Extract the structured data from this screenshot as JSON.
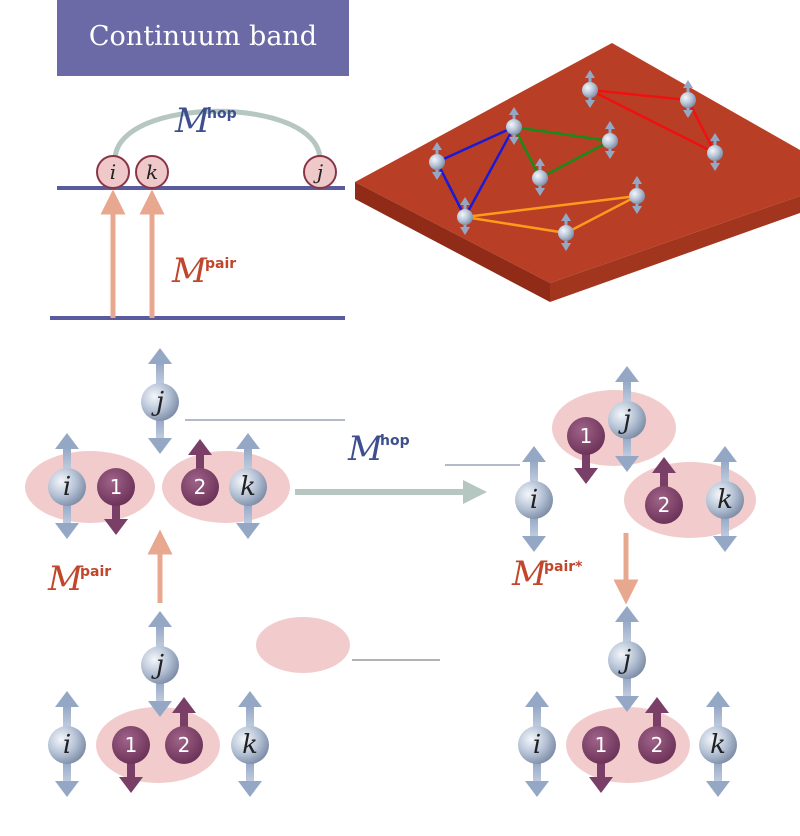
{
  "top_left": {
    "band_title": "Continuum band",
    "hop_symbol": "M",
    "hop_sup": "hop",
    "pair_symbol": "M",
    "pair_sup": "pair",
    "site_i": "i",
    "site_k": "k",
    "site_j": "j"
  },
  "bottom": {
    "hop_symbol": "M",
    "hop_sup": "hop",
    "pair_symbol_left": "M",
    "pair_sup_left": "pair",
    "pair_symbol_right": "M",
    "pair_sup_right": "pair*",
    "site_i": "i",
    "site_j": "j",
    "site_k": "k",
    "particle_1": "1",
    "particle_2": "2"
  },
  "colors": {
    "band": "#6b6aa6",
    "level_line": "#5a5a9e",
    "hop_arc": "#b5c7c0",
    "pair_arrow": "#e8a890",
    "pair_text": "#c0462c",
    "hop_text": "#3d4f8f",
    "site_circle": "#efc9c9",
    "site_stroke": "#8a3546",
    "particle": "#7a3f66",
    "pair_blob": "#f2cccc",
    "spin_ball": "#b6c3d6",
    "spin_arrow": "#94a8c6",
    "slab_top": "#b83f26",
    "slab_side": "#8f2b17",
    "edge_blue": "#1a1ad6",
    "edge_green": "#1a8a1a",
    "edge_red": "#ee1111",
    "edge_orange": "#ff9a1a"
  },
  "icons": [
    "spin-up-icon",
    "spin-down-icon",
    "molecule-icon"
  ]
}
